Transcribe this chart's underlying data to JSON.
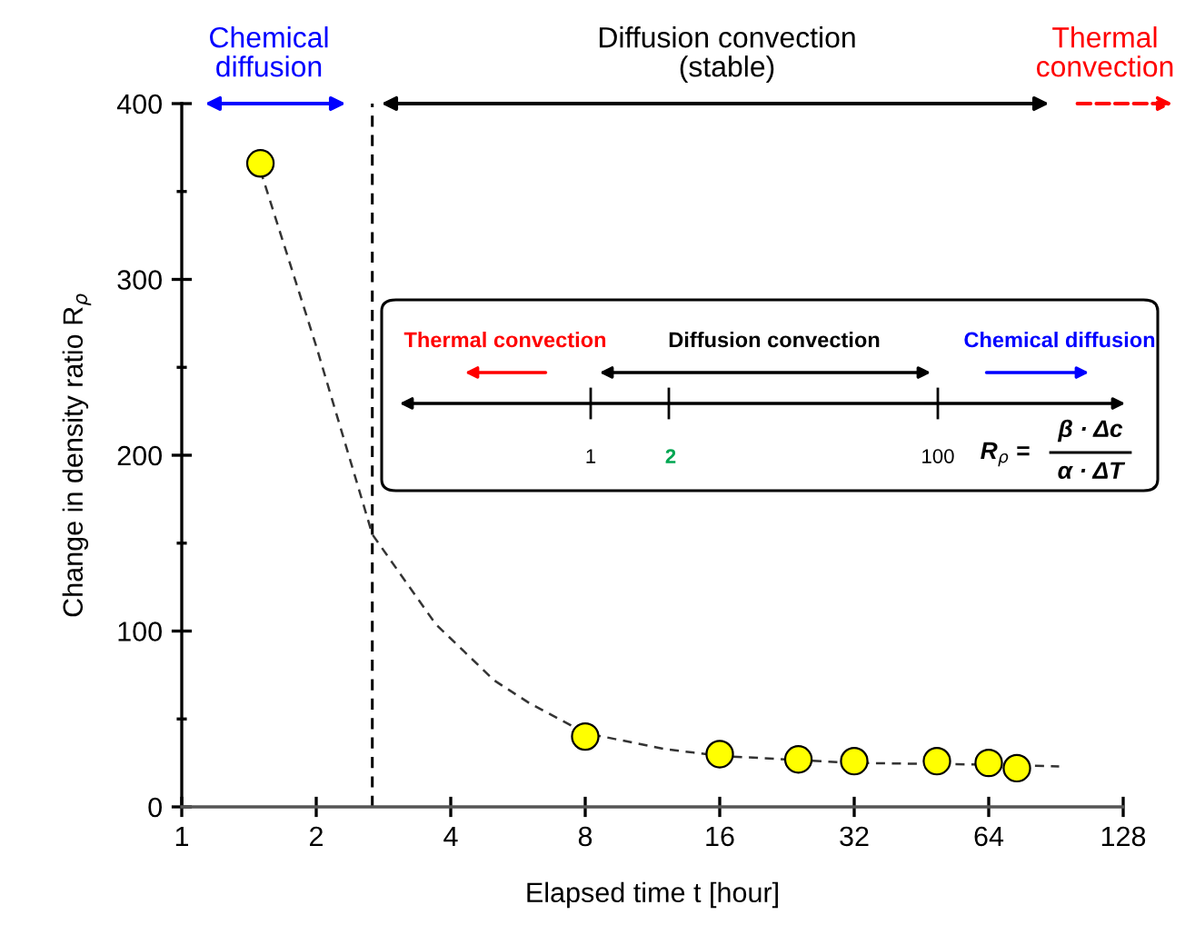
{
  "chart_data": {
    "type": "scatter",
    "xlabel": "Elapsed time t [hour]",
    "ylabel": "Change in density ratio R$_{ρ}$",
    "series": [
      {
        "color": "#ffff00",
        "x": [
          1.5,
          8,
          16,
          24,
          32,
          49,
          64,
          74
        ],
        "values": [
          366,
          40,
          30,
          27,
          26,
          26,
          25,
          22
        ]
      },
      {
        "type": "line",
        "color": "#333333",
        "line_style": "dashed",
        "marker": "none",
        "x": [
          1.5,
          2,
          2.67,
          3.7,
          5,
          6,
          8,
          12,
          16,
          32,
          64,
          92
        ],
        "values": [
          362,
          262,
          155,
          104,
          72,
          59,
          42,
          33,
          29,
          25,
          24,
          23
        ]
      }
    ],
    "marker": "circle",
    "log": "x",
    "xlim": [
      1,
      128
    ],
    "xticks": [
      1,
      2,
      4,
      8,
      16,
      32,
      64,
      128
    ],
    "ylim": [
      0,
      400
    ],
    "yticks": [
      0,
      {
        "value": 50,
        "label": null
      },
      100,
      {
        "value": 150,
        "label": null
      },
      200,
      {
        "value": 250,
        "label": null
      },
      300,
      {
        "value": 350,
        "label": null
      },
      400
    ],
    "grid": false,
    "legend": false,
    "ref_lines": [
      {
        "axis": "x",
        "value": 2.67,
        "color": "#000000",
        "line_style": "dashed"
      }
    ],
    "annotations": [
      "Chemical\ndiffusion",
      "Diffusion convection\n(stable)",
      "Thermal\nconvection",
      "Thermal convection",
      "Diffusion convection",
      "Chemical diffusion",
      "1",
      "2",
      "100",
      "R$_{ρ}$ =",
      "β · Δc",
      "α · ΔT"
    ]
  }
}
